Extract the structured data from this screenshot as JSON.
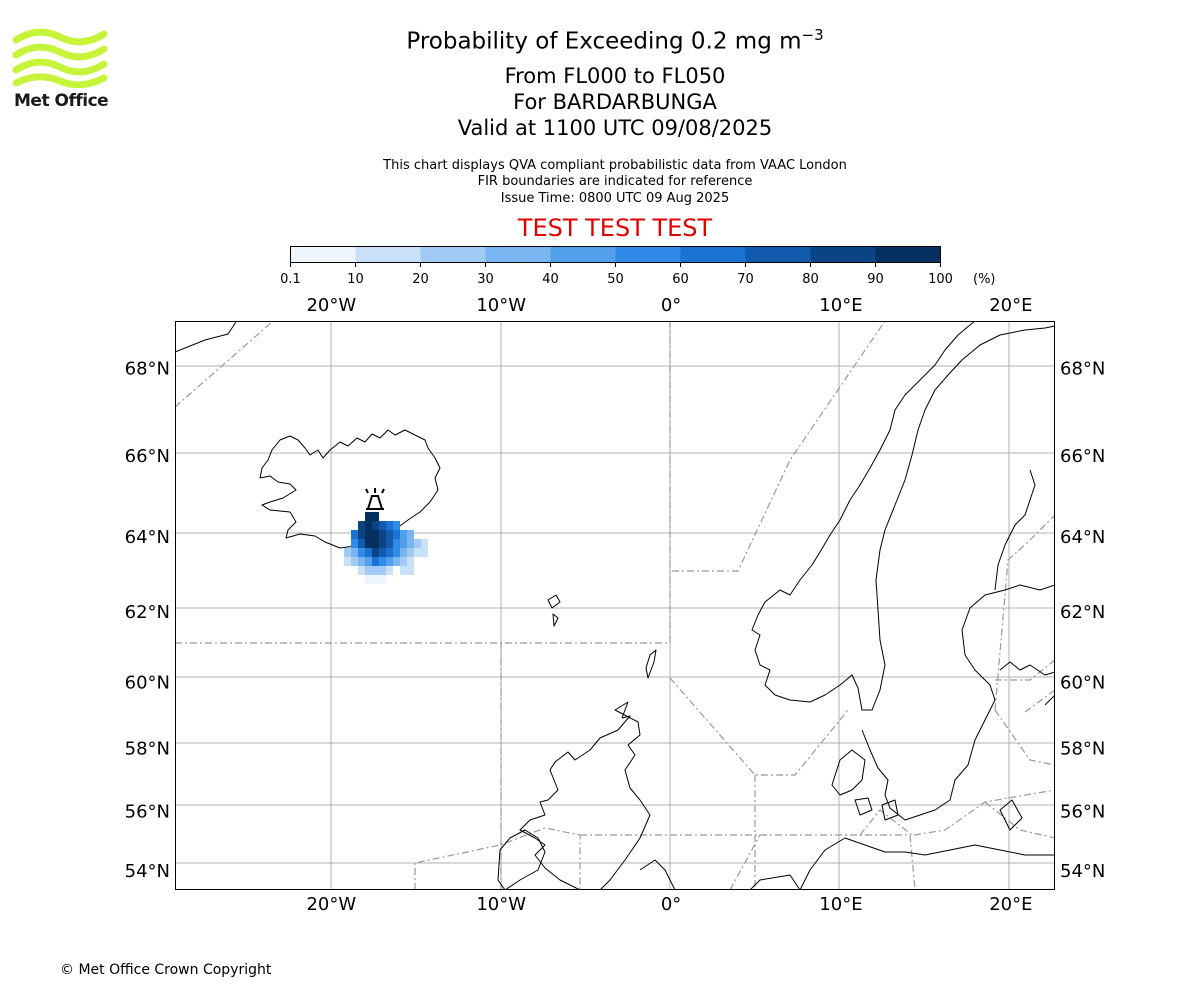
{
  "logo": {
    "text": "Met Office",
    "accent": "#c6f43a"
  },
  "title": {
    "main": "Probability of Exceeding 0.2 mg m",
    "main_sup": "−3",
    "levels": "From FL000 to FL050",
    "volcano": "For BARDARBUNGA",
    "valid": "Valid at 1100 UTC 09/08/2025"
  },
  "subtitle": {
    "line1": "This chart displays QVA compliant probabilistic data from VAAC London",
    "line2": "FIR boundaries are indicated for reference",
    "line3": "Issue Time: 0800 UTC 09 Aug 2025"
  },
  "test_banner": "TEST TEST TEST",
  "colorbar": {
    "ticks": [
      "0.1",
      "10",
      "20",
      "30",
      "40",
      "50",
      "60",
      "70",
      "80",
      "90",
      "100"
    ],
    "unit": "(%)",
    "colors": [
      "#eef5fd",
      "#c8e0f8",
      "#a1cbf4",
      "#79b5f0",
      "#52a0ec",
      "#2f8be7",
      "#1a72d2",
      "#115aae",
      "#0a4486",
      "#05305f"
    ]
  },
  "map": {
    "lon_labels": [
      "20°W",
      "10°W",
      "0°",
      "10°E",
      "20°E"
    ],
    "lon_values": [
      -20,
      -10,
      0,
      10,
      20
    ],
    "lat_labels": [
      "68°N",
      "66°N",
      "64°N",
      "62°N",
      "60°N",
      "58°N",
      "56°N",
      "54°N"
    ],
    "lat_values": [
      68,
      66,
      64,
      62,
      60,
      58,
      56,
      54
    ],
    "extent": {
      "lon": [
        -29.2,
        22.6
      ],
      "lat": [
        53.3,
        69
      ]
    }
  },
  "footer": {
    "copyright": "© Met Office Crown Copyright"
  }
}
